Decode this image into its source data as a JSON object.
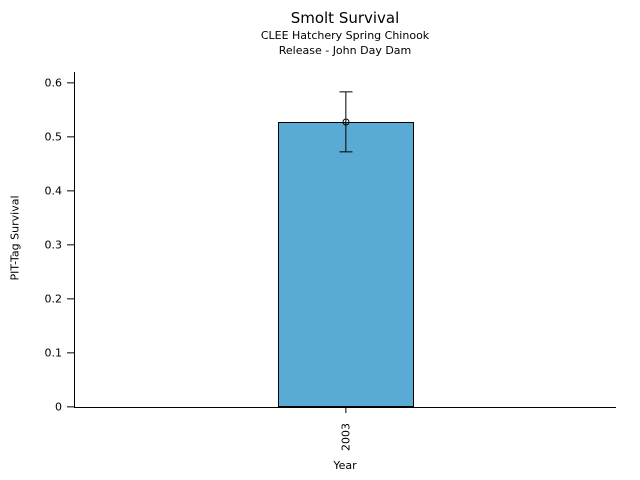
{
  "chart_data": {
    "type": "bar",
    "title": "Smolt Survival",
    "subtitle_lines": [
      "CLEE Hatchery Spring Chinook",
      "Release - John Day Dam"
    ],
    "xlabel": "Year",
    "ylabel": "PIT-Tag Survival",
    "categories": [
      "2003"
    ],
    "values": [
      0.528
    ],
    "error_bars": [
      {
        "lower": 0.472,
        "upper": 0.583
      }
    ],
    "marker": "open-circle",
    "yticks": [
      0,
      0.1,
      0.2,
      0.3,
      0.4,
      0.5,
      0.6
    ],
    "ytick_labels": [
      "0",
      "0.1",
      "0.2",
      "0.3",
      "0.4",
      "0.5",
      "0.6"
    ],
    "ylim": [
      0,
      0.62
    ],
    "grid": false,
    "legend": null,
    "bar_color": "#59AAD4",
    "edge_color": "#000000",
    "text_color": "#000000",
    "background_color": "#FFFFFF"
  }
}
